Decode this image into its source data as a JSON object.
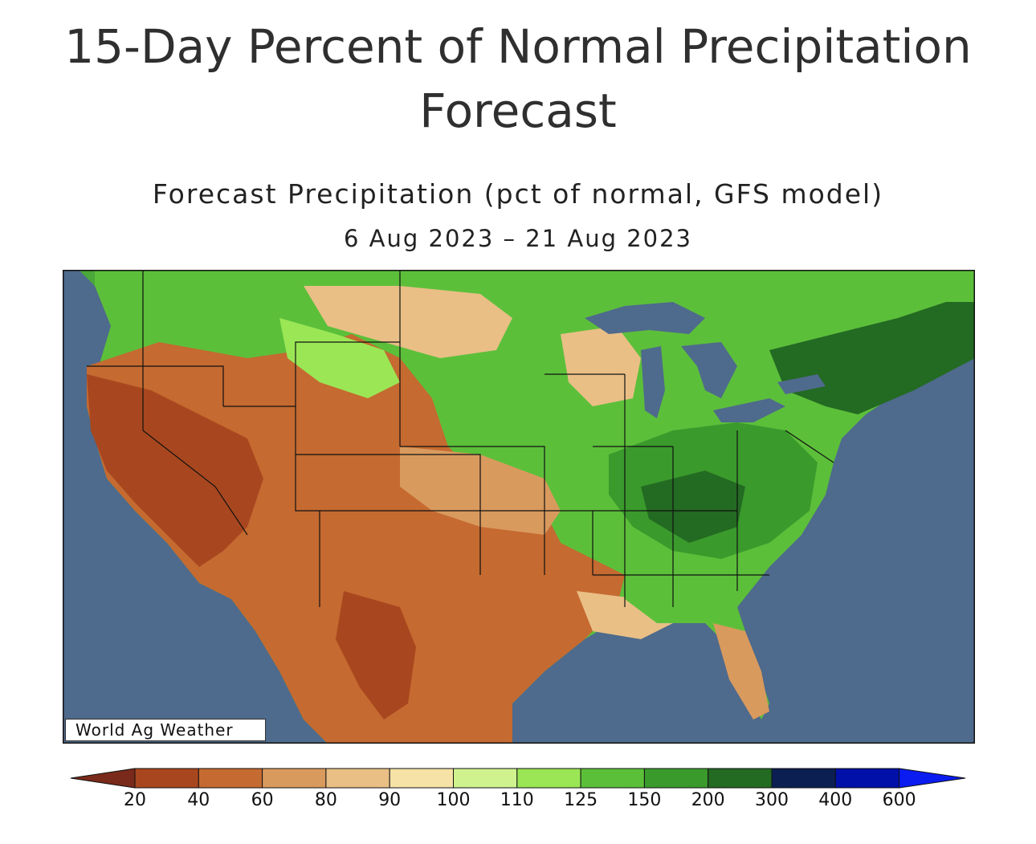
{
  "header": {
    "title": "15-Day Percent of Normal Precipitation Forecast"
  },
  "map": {
    "title": "Forecast Precipitation (pct of normal, GFS model)",
    "date_range": "6 Aug 2023 – 21 Aug 2023",
    "credit": "World Ag Weather",
    "colors": {
      "ocean": "#4e6a8c",
      "land_low": "#7a2e1c",
      "land_high": "#1f5e22"
    }
  },
  "legend": {
    "labels": [
      "20",
      "40",
      "60",
      "80",
      "90",
      "100",
      "110",
      "125",
      "150",
      "200",
      "300",
      "400",
      "600"
    ],
    "colors": [
      "#7a2a1a",
      "#a8471f",
      "#c56a30",
      "#d99a5e",
      "#e9bf86",
      "#f6e2a6",
      "#cff28e",
      "#9be655",
      "#5cbf3a",
      "#3a9a2c",
      "#236a22",
      "#0b1f52",
      "#0010a8",
      "#0a1cf0"
    ]
  }
}
